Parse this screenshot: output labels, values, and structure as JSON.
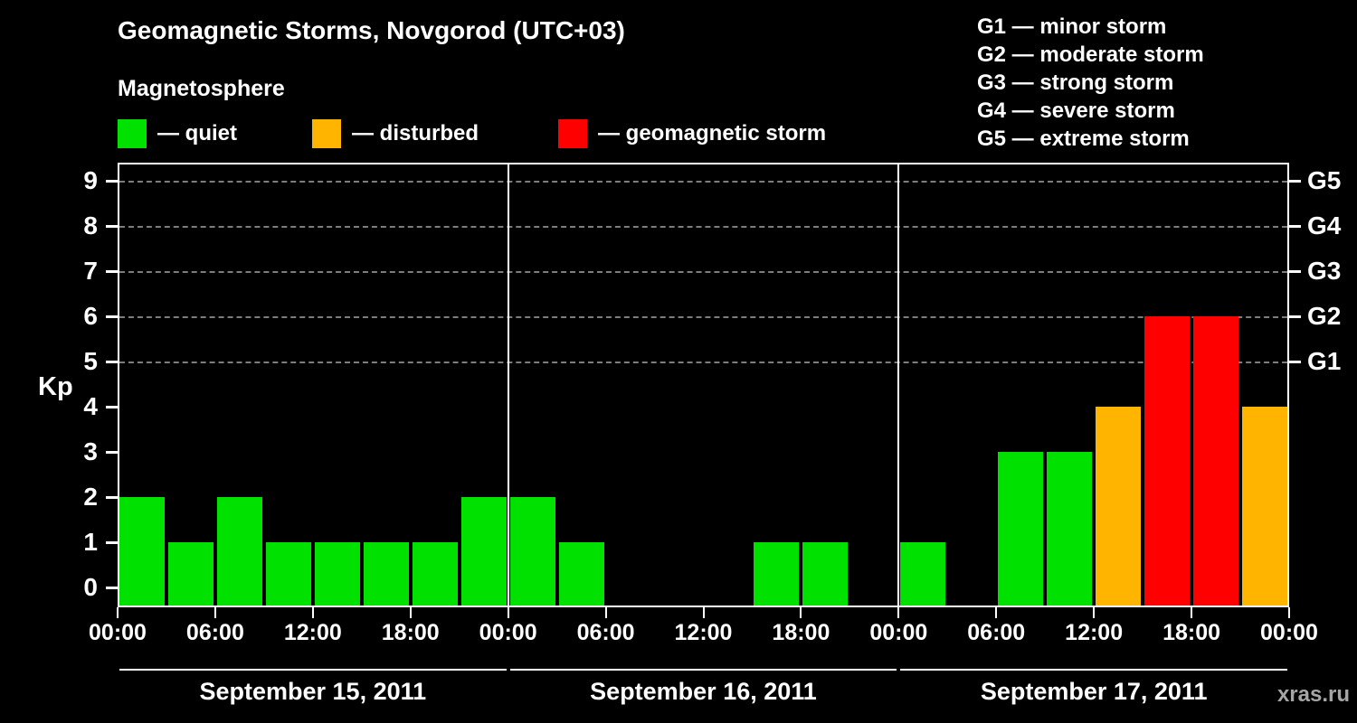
{
  "title": "Geomagnetic Storms, Novgorod (UTC+03)",
  "subtitle": "Magnetosphere",
  "legend": {
    "items": [
      {
        "key": "quiet",
        "label": "— quiet",
        "color": "#00e100"
      },
      {
        "key": "disturbed",
        "label": "— disturbed",
        "color": "#ffb400"
      },
      {
        "key": "storm",
        "label": "— geomagnetic storm",
        "color": "#ff0000"
      }
    ]
  },
  "storm_scale": [
    "G1 — minor storm",
    "G2 — moderate storm",
    "G3 — strong storm",
    "G4 — severe storm",
    "G5 — extreme storm"
  ],
  "watermark": "xras.ru",
  "chart_data": {
    "type": "bar",
    "title": "Geomagnetic Storms, Novgorod (UTC+03)",
    "ylabel": "Kp",
    "ylim": [
      0,
      9.6
    ],
    "yticks": [
      0,
      1,
      2,
      3,
      4,
      5,
      6,
      7,
      8,
      9
    ],
    "grid": "dashed-at-storm-levels",
    "grid_levels": [
      5,
      6,
      7,
      8,
      9
    ],
    "right_axis_labels": [
      {
        "kp": 5,
        "label": "G1"
      },
      {
        "kp": 6,
        "label": "G2"
      },
      {
        "kp": 7,
        "label": "G3"
      },
      {
        "kp": 8,
        "label": "G4"
      },
      {
        "kp": 9,
        "label": "G5"
      }
    ],
    "x_tick_labels": [
      "00:00",
      "06:00",
      "12:00",
      "18:00"
    ],
    "x_axis_end_label": "00:00",
    "bar_interval_hours": 3,
    "color_rule": {
      "disturbed_min_kp": 4,
      "storm_min_kp": 5
    },
    "colors": {
      "quiet": "#00e100",
      "disturbed": "#ffb400",
      "storm": "#ff0000"
    },
    "days": [
      {
        "date": "September 15, 2011",
        "values": [
          2,
          1,
          2,
          1,
          1,
          1,
          1,
          2
        ]
      },
      {
        "date": "September 16, 2011",
        "values": [
          2,
          1,
          0,
          0,
          0,
          1,
          1,
          0
        ]
      },
      {
        "date": "September 17, 2011",
        "values": [
          1,
          0,
          3,
          3,
          4,
          6,
          6,
          4
        ]
      }
    ]
  }
}
